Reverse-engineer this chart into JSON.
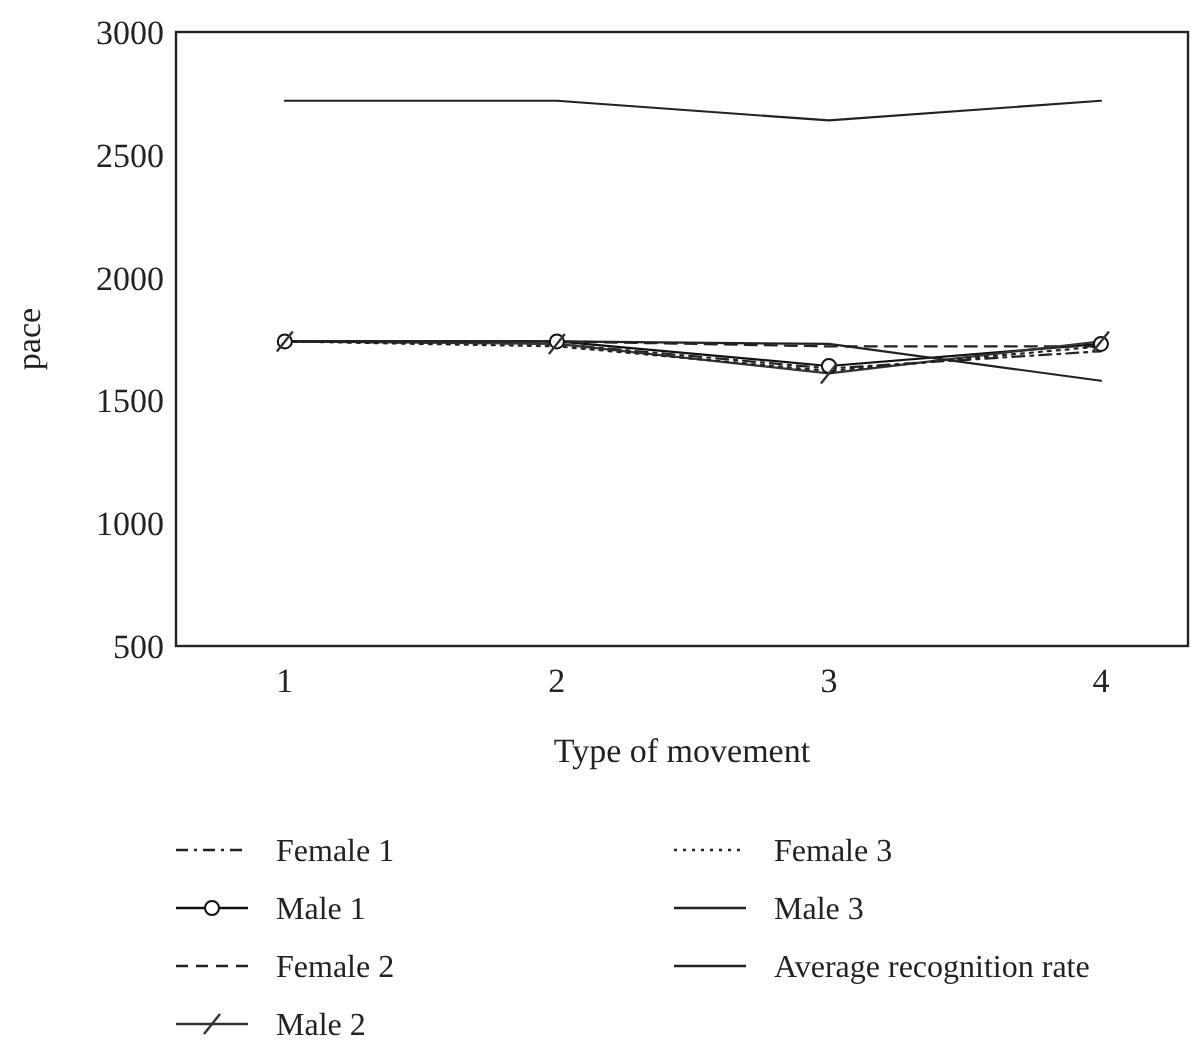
{
  "chart_data": {
    "type": "line",
    "xlabel": "Type of movement",
    "ylabel": "pace",
    "x": [
      1,
      2,
      3,
      4
    ],
    "xlim": [
      0.6,
      4.32
    ],
    "xticks": [
      1,
      2,
      3,
      4
    ],
    "ylim": [
      500,
      3000
    ],
    "yticks": [
      500,
      1000,
      1500,
      2000,
      2500,
      3000
    ],
    "grid": false,
    "legend": "bottom",
    "series": [
      {
        "name": "Female 1",
        "color": "#222222",
        "line_style": "dashdot",
        "values": [
          1740,
          1730,
          1630,
          1700
        ]
      },
      {
        "name": "Male 1",
        "color": "#111111",
        "line_style": "solid",
        "marker": "circle",
        "values": [
          1740,
          1740,
          1640,
          1730
        ]
      },
      {
        "name": "Female 2",
        "color": "#222222",
        "line_style": "dashed",
        "values": [
          1740,
          1740,
          1720,
          1720
        ]
      },
      {
        "name": "Male 2",
        "color": "#333333",
        "line_style": "solid",
        "marker": "cross",
        "values": [
          1740,
          1730,
          1610,
          1740
        ]
      },
      {
        "name": "Female 3",
        "color": "#222222",
        "line_style": "dotted",
        "values": [
          1740,
          1720,
          1620,
          1720
        ]
      },
      {
        "name": "Male 3",
        "color": "#222222",
        "line_style": "solid",
        "values": [
          1740,
          1740,
          1730,
          1580
        ]
      },
      {
        "name": "Average recognition rate",
        "color": "#222222",
        "line_style": "solid",
        "values": [
          2720,
          2720,
          2640,
          2720
        ]
      }
    ]
  }
}
